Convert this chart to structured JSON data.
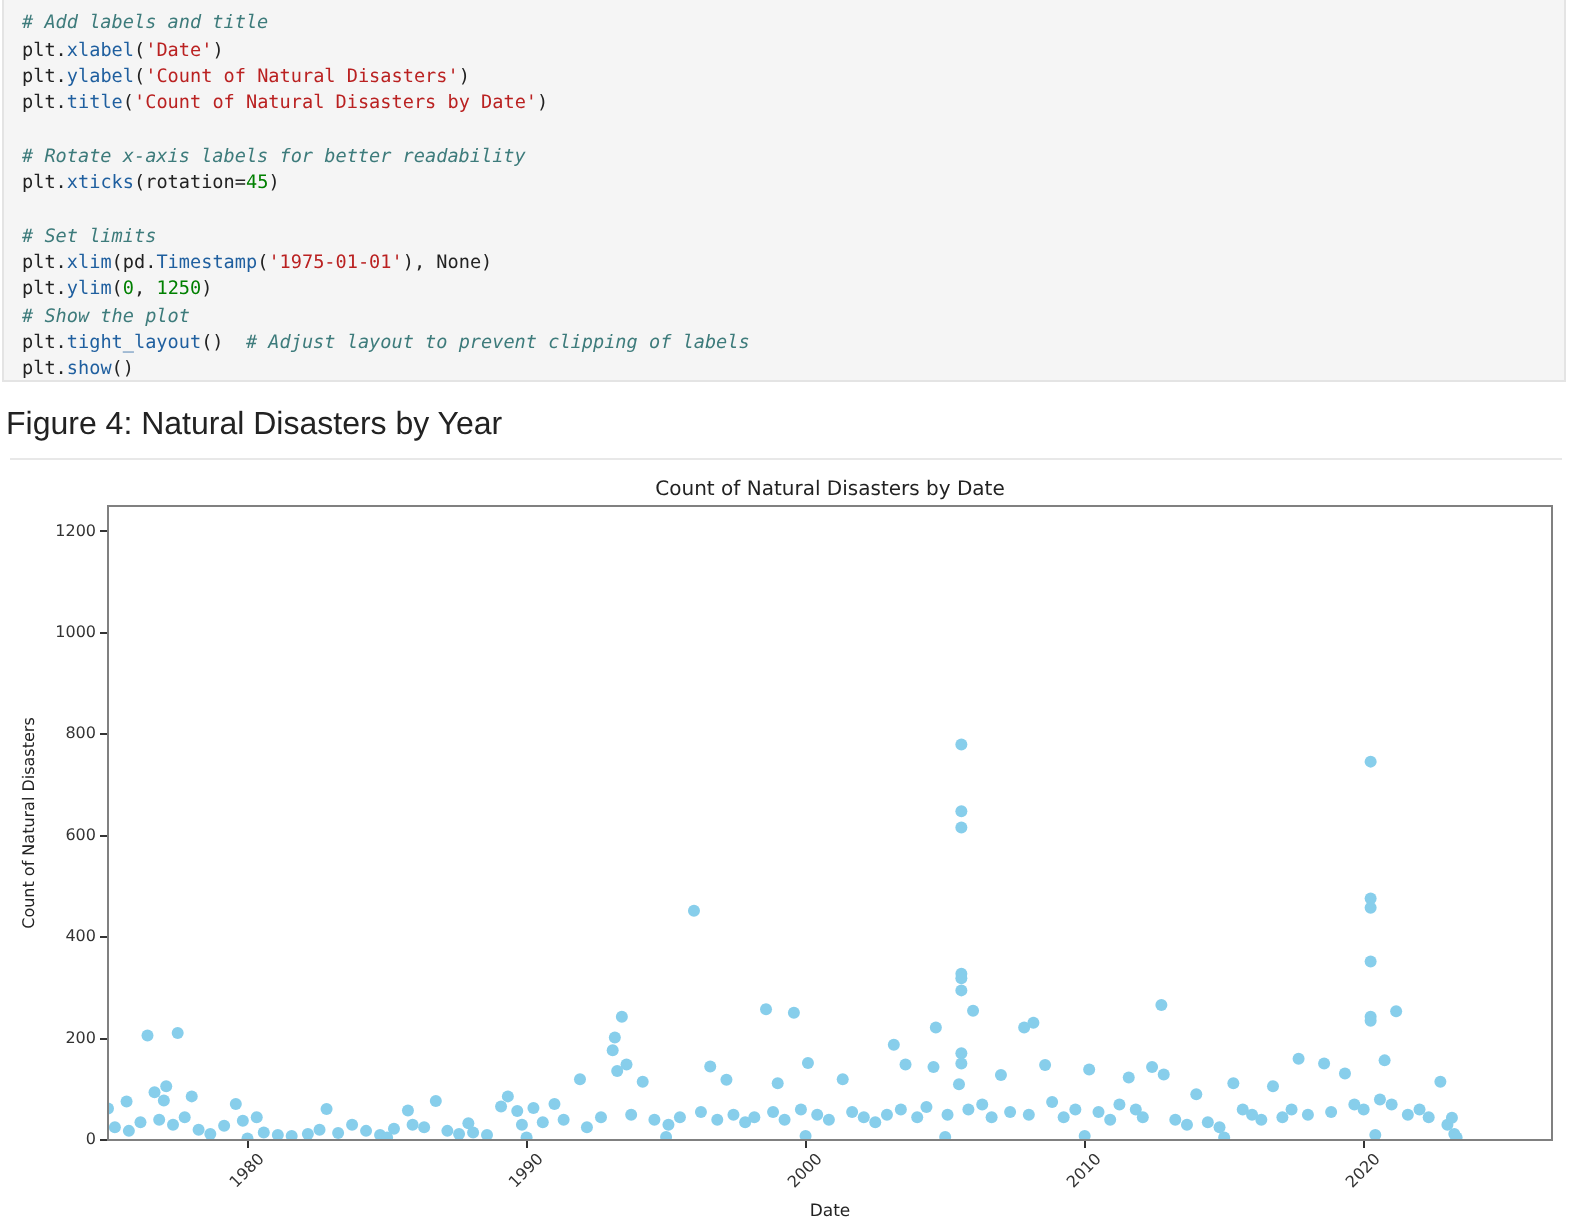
{
  "chart_data": {
    "type": "scatter",
    "title": "Count of Natural Disasters by Date",
    "subtitle": "Figure 4: Natural Disasters by Year",
    "xlabel": "Date",
    "ylabel": "Count of Natural Disasters",
    "annotations": [
      "# Add labels and title\nplt.xlabel('Date')\nplt.ylabel('Count of Natural Disasters')\nplt.title('Count of Natural Disasters by Date')",
      "# Rotate x-axis labels for better readability\nplt.xticks(rotation=45)",
      "# Set limits\nplt.xlim(pd.Timestamp('1975-01-01'), None)\nplt.ylim(0, 1250)\n# Show the plot\nplt.tight_layout()  # Adjust layout to prevent clipping of labels\nplt.show()"
    ],
    "color": "#87ceeb",
    "marker": "circle",
    "x": [
      "1975-01",
      "1975-04",
      "1975-09",
      "1975-10",
      "1976-03",
      "1976-06",
      "1976-09",
      "1976-11",
      "1977-01",
      "1977-02",
      "1977-05",
      "1977-07",
      "1977-10",
      "1978-01",
      "1978-04",
      "1978-09",
      "1979-03",
      "1979-08",
      "1979-11",
      "1980-01",
      "1980-05",
      "1980-08",
      "1981-02",
      "1981-08",
      "1982-03",
      "1982-08",
      "1982-11",
      "1983-04",
      "1983-10",
      "1984-04",
      "1984-10",
      "1985-01",
      "1985-04",
      "1985-10",
      "1985-12",
      "1986-05",
      "1986-10",
      "1987-03",
      "1987-08",
      "1987-12",
      "1988-02",
      "1988-08",
      "1989-02",
      "1989-05",
      "1989-09",
      "1989-11",
      "1990-01",
      "1990-04",
      "1990-08",
      "1991-01",
      "1991-05",
      "1991-12",
      "1992-03",
      "1992-09",
      "1993-02",
      "1993-03",
      "1993-04",
      "1993-06",
      "1993-08",
      "1993-10",
      "1994-03",
      "1994-08",
      "1995-01",
      "1995-02",
      "1995-07",
      "1996-01",
      "1996-04",
      "1996-08",
      "1996-11",
      "1997-03",
      "1997-06",
      "1997-11",
      "1998-03",
      "1998-08",
      "1998-11",
      "1999-01",
      "1999-04",
      "1999-08",
      "1999-11",
      "2000-01",
      "2000-02",
      "2000-06",
      "2000-11",
      "2001-05",
      "2001-09",
      "2002-02",
      "2002-07",
      "2002-12",
      "2003-03",
      "2003-06",
      "2003-08",
      "2004-01",
      "2004-05",
      "2004-08",
      "2004-09",
      "2005-01",
      "2005-02",
      "2005-07",
      "2005-08",
      "2005-08",
      "2005-08",
      "2005-08",
      "2005-08",
      "2005-08",
      "2005-08",
      "2005-08",
      "2005-11",
      "2006-01",
      "2006-05",
      "2006-09",
      "2007-01",
      "2007-05",
      "2007-11",
      "2008-01",
      "2008-03",
      "2008-08",
      "2008-11",
      "2009-04",
      "2009-09",
      "2010-01",
      "2010-03",
      "2010-07",
      "2010-12",
      "2011-04",
      "2011-08",
      "2011-11",
      "2012-02",
      "2012-06",
      "2012-10",
      "2012-11",
      "2013-04",
      "2013-09",
      "2014-01",
      "2014-06",
      "2014-11",
      "2015-01",
      "2015-05",
      "2015-09",
      "2016-01",
      "2016-05",
      "2016-10",
      "2017-02",
      "2017-06",
      "2017-09",
      "2018-01",
      "2018-08",
      "2018-11",
      "2019-05",
      "2019-09",
      "2020-01",
      "2020-04",
      "2020-04",
      "2020-04",
      "2020-04",
      "2020-04",
      "2020-04",
      "2020-06",
      "2020-08",
      "2020-10",
      "2021-01",
      "2021-03",
      "2021-08",
      "2022-01",
      "2022-05",
      "2022-10",
      "2023-01",
      "2023-03",
      "2023-04",
      "2023-05"
    ],
    "values": [
      62,
      25,
      76,
      18,
      35,
      206,
      94,
      40,
      78,
      106,
      30,
      211,
      45,
      86,
      20,
      12,
      28,
      71,
      38,
      3,
      45,
      15,
      10,
      8,
      12,
      20,
      61,
      14,
      30,
      18,
      10,
      5,
      22,
      58,
      30,
      25,
      77,
      18,
      12,
      33,
      15,
      10,
      66,
      86,
      57,
      30,
      5,
      63,
      35,
      71,
      40,
      120,
      25,
      45,
      177,
      202,
      136,
      243,
      149,
      50,
      115,
      40,
      6,
      30,
      45,
      452,
      55,
      145,
      40,
      119,
      50,
      35,
      45,
      258,
      55,
      112,
      40,
      251,
      60,
      8,
      152,
      50,
      40,
      120,
      55,
      45,
      35,
      50,
      188,
      60,
      149,
      45,
      65,
      144,
      222,
      6,
      50,
      110,
      780,
      648,
      616,
      328,
      319,
      295,
      171,
      151,
      60,
      255,
      70,
      45,
      128,
      55,
      222,
      50,
      231,
      148,
      75,
      45,
      60,
      8,
      139,
      55,
      40,
      70,
      123,
      60,
      45,
      144,
      266,
      129,
      40,
      30,
      90,
      35,
      25,
      5,
      112,
      60,
      50,
      40,
      106,
      45,
      60,
      160,
      50,
      151,
      55,
      131,
      70,
      60,
      746,
      476,
      458,
      352,
      243,
      235,
      10,
      80,
      157,
      70,
      254,
      50,
      60,
      45,
      115,
      30,
      44,
      12,
      5
    ],
    "xlim": [
      "1975-01-01",
      "2026-10"
    ],
    "xticks": [
      "1980",
      "1990",
      "2000",
      "2010",
      "2020"
    ],
    "ylim": [
      0,
      1250
    ],
    "yticks": [
      0,
      200,
      400,
      600,
      800,
      1000,
      1200
    ]
  }
}
